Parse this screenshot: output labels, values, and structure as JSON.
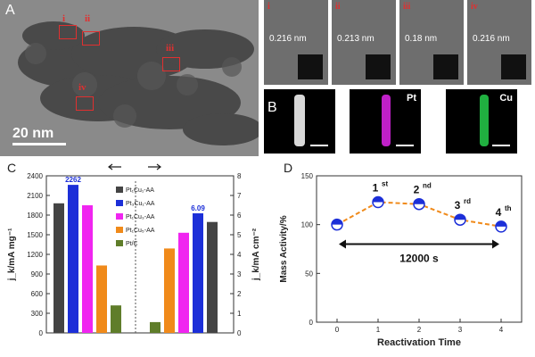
{
  "panel_a": {
    "letter": "A",
    "scale_bar": "20 nm",
    "regions": [
      "i",
      "ii",
      "iii",
      "iv"
    ]
  },
  "hrtem": [
    {
      "label": "i",
      "spacing": "0.216 nm"
    },
    {
      "label": "ii",
      "spacing": "0.213 nm"
    },
    {
      "label": "iii",
      "spacing": "0.18 nm"
    },
    {
      "label": "iv",
      "spacing": "0.216 nm"
    }
  ],
  "panel_b": {
    "letter": "B",
    "maps": [
      {
        "label": "",
        "color": "#d8d8d8"
      },
      {
        "label": "Pt",
        "color": "#c020c8"
      },
      {
        "label": "Cu",
        "color": "#20b040"
      }
    ]
  },
  "panel_c_letter": "C",
  "panel_d_letter": "D",
  "chart_data": [
    {
      "type": "bar",
      "panel": "C",
      "ylabel_left": "j_k/mA mg⁻¹",
      "ylabel_right": "j_k/mA cm⁻²",
      "ylim_left": [
        0,
        2400
      ],
      "ylim_right": [
        0,
        8
      ],
      "yticks_left": [
        "0",
        "300",
        "600",
        "900",
        "1200",
        "1500",
        "1800",
        "2100",
        "2400"
      ],
      "yticks_right": [
        "0",
        "1",
        "2",
        "3",
        "4",
        "5",
        "6",
        "7",
        "8"
      ],
      "legend": [
        {
          "name": "Pt₁Cu₁-AA",
          "color": "#444444"
        },
        {
          "name": "Pt₃Cu₁-AA",
          "color": "#1c2fd8"
        },
        {
          "name": "Pt₁Cu₃-AA",
          "color": "#f025f0"
        },
        {
          "name": "Pt₁Cu₅-AA",
          "color": "#f08a1a"
        },
        {
          "name": "Pt/C",
          "color": "#5f7d2a"
        }
      ],
      "mass_activity": [
        1980,
        2262,
        1950,
        1030,
        420
      ],
      "specific_activity": [
        0.55,
        4.3,
        5.1,
        6.09,
        5.65
      ],
      "labels": {
        "mass_top": "2262",
        "specific_top": "6.09"
      }
    },
    {
      "type": "line",
      "panel": "D",
      "xlabel": "Reactivation Time",
      "ylabel": "Mass Activity/%",
      "x": [
        0,
        1,
        2,
        3,
        4
      ],
      "y": [
        100,
        123,
        121,
        105,
        98
      ],
      "xlim": [
        0,
        4
      ],
      "ylim": [
        0,
        150
      ],
      "yticks": [
        "0",
        "50",
        "100",
        "150"
      ],
      "xticks": [
        "0",
        "1",
        "2",
        "3",
        "4"
      ],
      "point_labels": [
        {
          "base": "",
          "sup": ""
        },
        {
          "base": "1",
          "sup": "st"
        },
        {
          "base": "2",
          "sup": "nd"
        },
        {
          "base": "3",
          "sup": "rd"
        },
        {
          "base": "4",
          "sup": "th"
        }
      ],
      "annotation": "12000 s",
      "line_color": "#f08a1a",
      "marker_color": "#1c2fd8"
    }
  ]
}
